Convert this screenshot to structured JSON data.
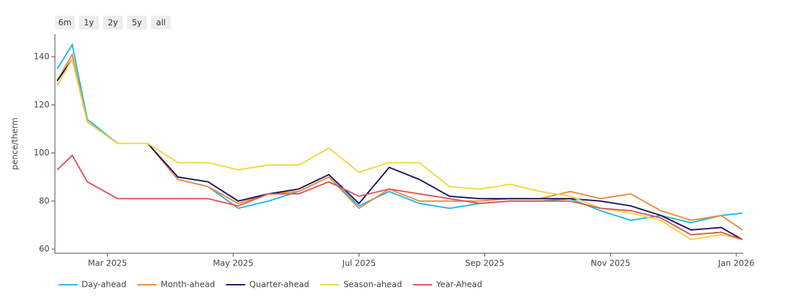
{
  "range_buttons": [
    "6m",
    "1y",
    "2y",
    "5y",
    "all"
  ],
  "chart_data": {
    "type": "line",
    "y_label": "pence/therm",
    "grid": false,
    "legend": "bottom-left",
    "x": [
      2025.1,
      2025.12,
      2025.14,
      2025.18,
      2025.22,
      2025.26,
      2025.3,
      2025.34,
      2025.38,
      2025.42,
      2025.46,
      2025.5,
      2025.54,
      2025.58,
      2025.62,
      2025.66,
      2025.7,
      2025.74,
      2025.78,
      2025.82,
      2025.86,
      2025.9,
      2025.94,
      2025.98,
      2026.008
    ],
    "xlim": [
      2025.097,
      2026.009
    ],
    "xticks": [
      {
        "value": 2025.1667,
        "label": "Mar 2025"
      },
      {
        "value": 2025.3333,
        "label": "May 2025"
      },
      {
        "value": 2025.5,
        "label": "Jul 2025"
      },
      {
        "value": 2025.6667,
        "label": "Sep 2025"
      },
      {
        "value": 2025.8333,
        "label": "Nov 2025"
      },
      {
        "value": 2026.0,
        "label": "Jan 2026"
      }
    ],
    "ylim": [
      58.3,
      149.4
    ],
    "yticks": [
      60,
      80,
      100,
      120,
      140
    ],
    "series": [
      {
        "name": "Day-ahead",
        "color": "#1fb8e8",
        "values": [
          135,
          145,
          114,
          104,
          104,
          89,
          86,
          77,
          80,
          84,
          90,
          78,
          84,
          79,
          77,
          79,
          80,
          80,
          81,
          76,
          72,
          74,
          71,
          74,
          75
        ]
      },
      {
        "name": "Month-ahead",
        "color": "#ef8a3a",
        "values": [
          130,
          141,
          113,
          104,
          104,
          89,
          86,
          79,
          83,
          84,
          90,
          77,
          85,
          80,
          80,
          80,
          81,
          81,
          84,
          81,
          83,
          76,
          72,
          74,
          68
        ]
      },
      {
        "name": "Quarter-ahead",
        "color": "#1a1660",
        "values": [
          130,
          139,
          113,
          104,
          104,
          90,
          88,
          80,
          83,
          85,
          91,
          79,
          94,
          89,
          82,
          81,
          81,
          81,
          81,
          80,
          78,
          74,
          68,
          69,
          64
        ]
      },
      {
        "name": "Season-ahead",
        "color": "#f2d641",
        "values": [
          128,
          139,
          113,
          104,
          104,
          96,
          96,
          93,
          95,
          95,
          102,
          92,
          96,
          96,
          86,
          85,
          87,
          84,
          82,
          77,
          75,
          72,
          64,
          66,
          64
        ]
      },
      {
        "name": "Year-Ahead",
        "color": "#e05555",
        "values": [
          93,
          99,
          88,
          81,
          81,
          81,
          81,
          78,
          83,
          83,
          88,
          82,
          85,
          83,
          81,
          79,
          80,
          80,
          80,
          77,
          76,
          73,
          66,
          67,
          64
        ]
      }
    ]
  }
}
